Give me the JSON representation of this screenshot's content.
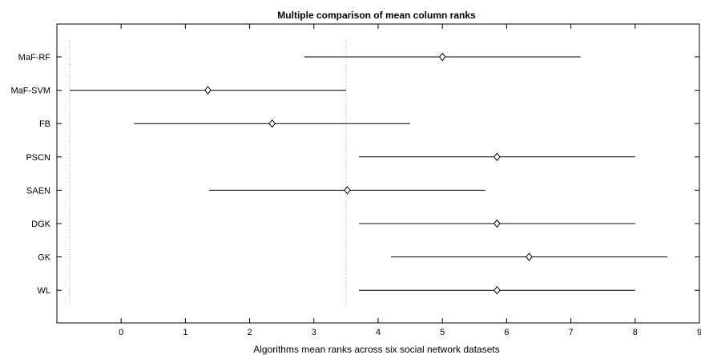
{
  "chart_data": {
    "type": "interval",
    "title": "Multiple comparison of mean column ranks",
    "xlabel": "Algorithms mean ranks across six social network datasets",
    "ylabel": "",
    "xlim": [
      -1,
      9
    ],
    "xticks": [
      0,
      1,
      2,
      3,
      4,
      5,
      6,
      7,
      8,
      9
    ],
    "xtick_labels": [
      "0",
      "1",
      "2",
      "3",
      "4",
      "5",
      "6",
      "7",
      "8",
      "9"
    ],
    "reference_lines": [
      -0.8,
      3.5
    ],
    "grid": false,
    "series": [
      {
        "name": "MaF-RF",
        "mean": 5.0,
        "lower": 2.85,
        "upper": 7.15
      },
      {
        "name": "MaF-SVM",
        "mean": 1.35,
        "lower": -0.8,
        "upper": 3.5
      },
      {
        "name": "FB",
        "mean": 2.35,
        "lower": 0.2,
        "upper": 4.5
      },
      {
        "name": "PSCN",
        "mean": 5.85,
        "lower": 3.7,
        "upper": 8.0
      },
      {
        "name": "SAEN",
        "mean": 3.52,
        "lower": 1.37,
        "upper": 5.67
      },
      {
        "name": "DGK",
        "mean": 5.85,
        "lower": 3.7,
        "upper": 8.0
      },
      {
        "name": "GK",
        "mean": 6.35,
        "lower": 4.2,
        "upper": 8.5
      },
      {
        "name": "WL",
        "mean": 5.85,
        "lower": 3.7,
        "upper": 8.0
      }
    ]
  }
}
